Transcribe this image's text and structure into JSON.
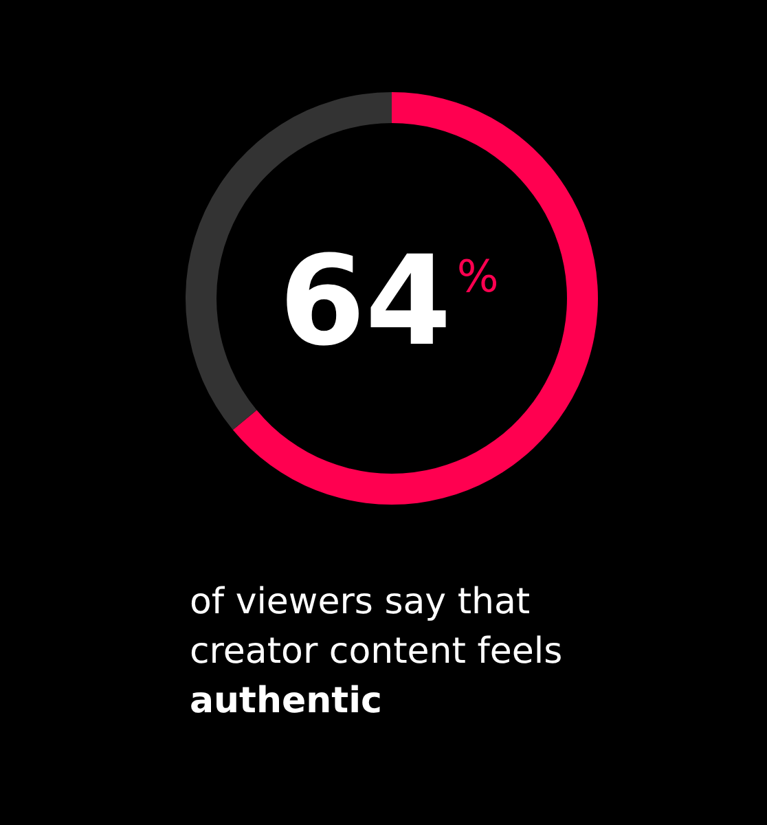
{
  "chart_data": {
    "type": "donut",
    "categories": [
      null,
      null
    ],
    "values": [
      64,
      36
    ],
    "colors": [
      "#ff0050",
      "#333333"
    ],
    "value_labels": [
      "64%",
      null
    ],
    "legend": false,
    "annotations": [
      "of viewers say that creator content feels",
      "authentic"
    ]
  }
}
